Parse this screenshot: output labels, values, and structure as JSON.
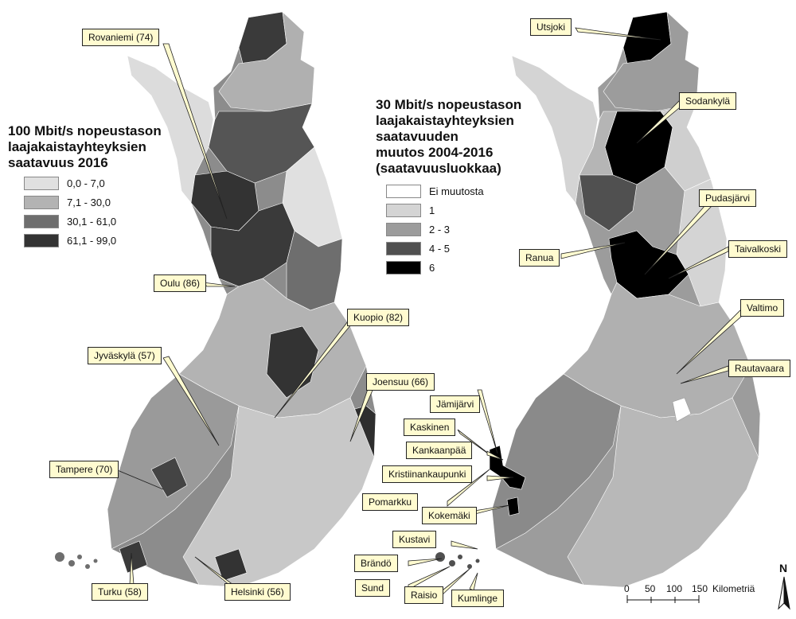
{
  "left_map": {
    "legend": {
      "title": "100 Mbit/s nopeustason\nlaajakaistayhteyksien\nsaatavuus 2016",
      "classes": [
        {
          "label": "0,0 - 7,0",
          "color": "#e0e0e0"
        },
        {
          "label": "7,1 - 30,0",
          "color": "#b3b3b3"
        },
        {
          "label": "30,1 - 61,0",
          "color": "#6e6e6e"
        },
        {
          "label": "61,1 - 99,0",
          "color": "#333333"
        }
      ]
    },
    "callouts": [
      "Rovaniemi (74)",
      "Oulu (86)",
      "Kuopio (82)",
      "Jyväskylä (57)",
      "Joensuu (66)",
      "Tampere (70)",
      "Turku (58)",
      "Helsinki (56)"
    ]
  },
  "right_map": {
    "legend": {
      "title": "30 Mbit/s nopeustason\nlaajakaistayhteyksien\nsaatavuuden\nmuutos 2004-2016\n(saatavuusluokkaa)",
      "classes": [
        {
          "label": "Ei muutosta",
          "color": "#ffffff"
        },
        {
          "label": "1",
          "color": "#d4d4d4"
        },
        {
          "label": "2 - 3",
          "color": "#9c9c9c"
        },
        {
          "label": "4 - 5",
          "color": "#505050"
        },
        {
          "label": "6",
          "color": "#000000"
        }
      ]
    },
    "callouts": [
      "Utsjoki",
      "Sodankylä",
      "Pudasjärvi",
      "Ranua",
      "Taivalkoski",
      "Valtimo",
      "Rautavaara",
      "Jämijärvi",
      "Kaskinen",
      "Kankaanpää",
      "Kristiinankaupunki",
      "Pomarkku",
      "Kokemäki",
      "Kustavi",
      "Brändö",
      "Sund",
      "Raisio",
      "Kumlinge"
    ]
  },
  "scale_bar": {
    "ticks": [
      "0",
      "50",
      "100",
      "150"
    ],
    "unit": "Kilometriä"
  },
  "north_arrow": {
    "label": "N"
  }
}
